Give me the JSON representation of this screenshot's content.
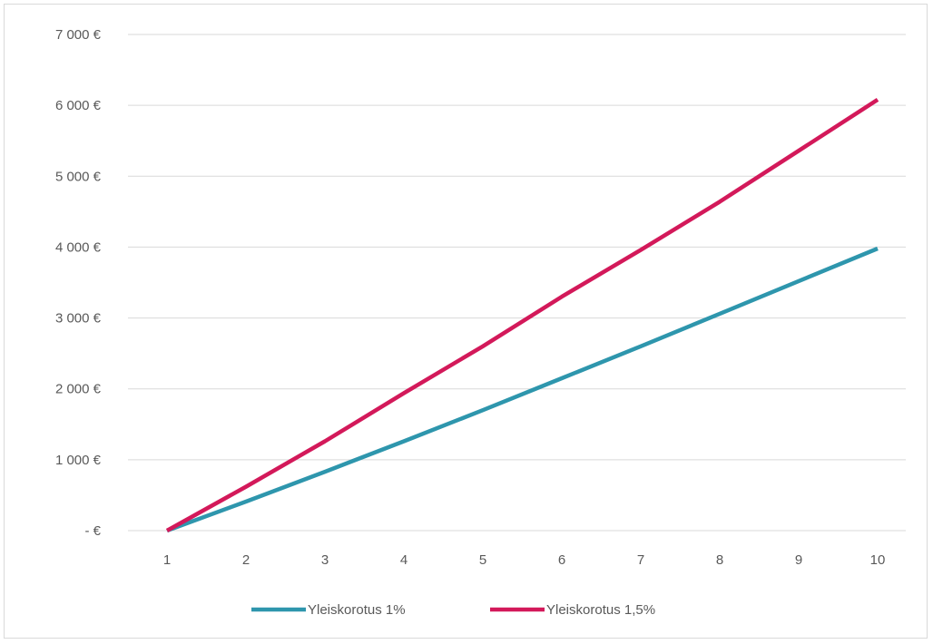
{
  "chart_data": {
    "type": "line",
    "title": "",
    "xlabel": "",
    "ylabel": "",
    "x": [
      1,
      2,
      3,
      4,
      5,
      6,
      7,
      8,
      9,
      10
    ],
    "x_tick_labels": [
      "1",
      "2",
      "3",
      "4",
      "5",
      "6",
      "7",
      "8",
      "9",
      "10"
    ],
    "y_ticks": [
      0,
      1000,
      2000,
      3000,
      4000,
      5000,
      6000,
      7000
    ],
    "y_tick_labels": [
      "-  €",
      "1 000 €",
      "2 000 €",
      "3 000 €",
      "4 000 €",
      "5 000 €",
      "6 000 €",
      "7 000 €"
    ],
    "ylim": [
      0,
      7000
    ],
    "grid": true,
    "legend_position": "bottom",
    "series": [
      {
        "name": "Yleiskorotus 1%",
        "color": "#2e96ad",
        "values": [
          0,
          410,
          830,
          1260,
          1700,
          2150,
          2600,
          3060,
          3520,
          3980
        ]
      },
      {
        "name": "Yleiskorotus 1,5%",
        "color": "#d3195a",
        "values": [
          0,
          620,
          1260,
          1940,
          2600,
          3300,
          3960,
          4640,
          5360,
          6080
        ]
      }
    ]
  }
}
